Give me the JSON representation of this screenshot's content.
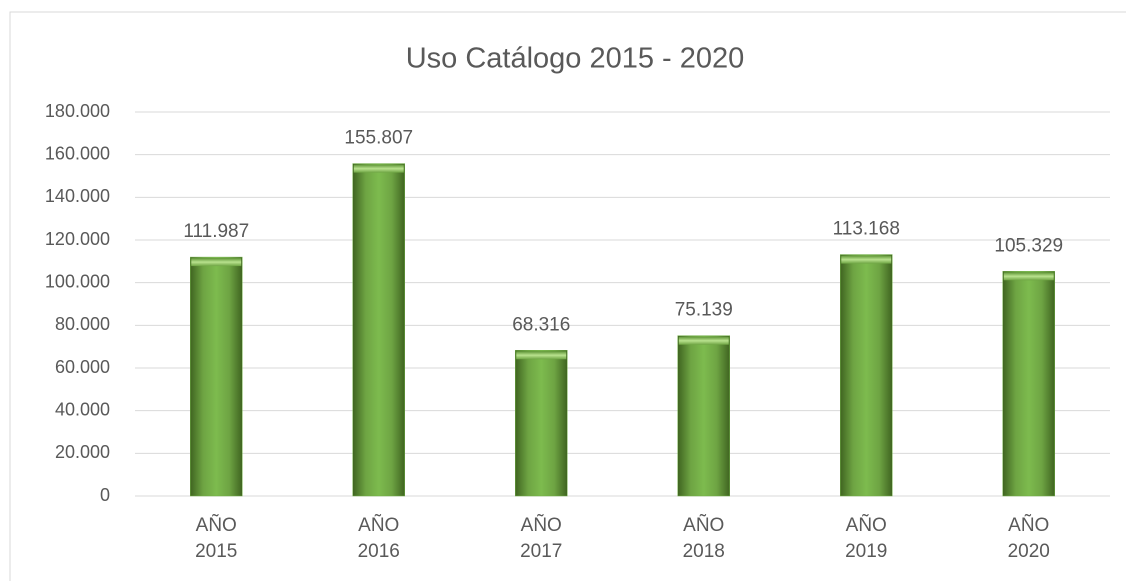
{
  "chart_data": {
    "type": "bar",
    "title": "Uso Catálogo 2015 - 2020",
    "categories": [
      "AÑO 2015",
      "AÑO 2016",
      "AÑO 2017",
      "AÑO 2018",
      "AÑO 2019",
      "AÑO 2020"
    ],
    "values": [
      111987,
      155807,
      68316,
      75139,
      113168,
      105329
    ],
    "value_labels": [
      "111.987",
      "155.807",
      "68.316",
      "75.139",
      "113.168",
      "105.329"
    ],
    "color": "#70ad47",
    "ylim": [
      0,
      180000
    ],
    "yticks": [
      0,
      {
        "value": 20000,
        "label": "20.000"
      },
      {
        "value": 40000,
        "label": "40.000"
      },
      {
        "value": 60000,
        "label": "60.000"
      },
      {
        "value": 80000,
        "label": "80.000"
      },
      {
        "value": 100000,
        "label": "100.000"
      },
      {
        "value": 120000,
        "label": "120.000"
      },
      {
        "value": 140000,
        "label": "140.000"
      },
      {
        "value": 160000,
        "label": "160.000"
      },
      {
        "value": 180000,
        "label": "180.000"
      }
    ],
    "grid": true
  }
}
